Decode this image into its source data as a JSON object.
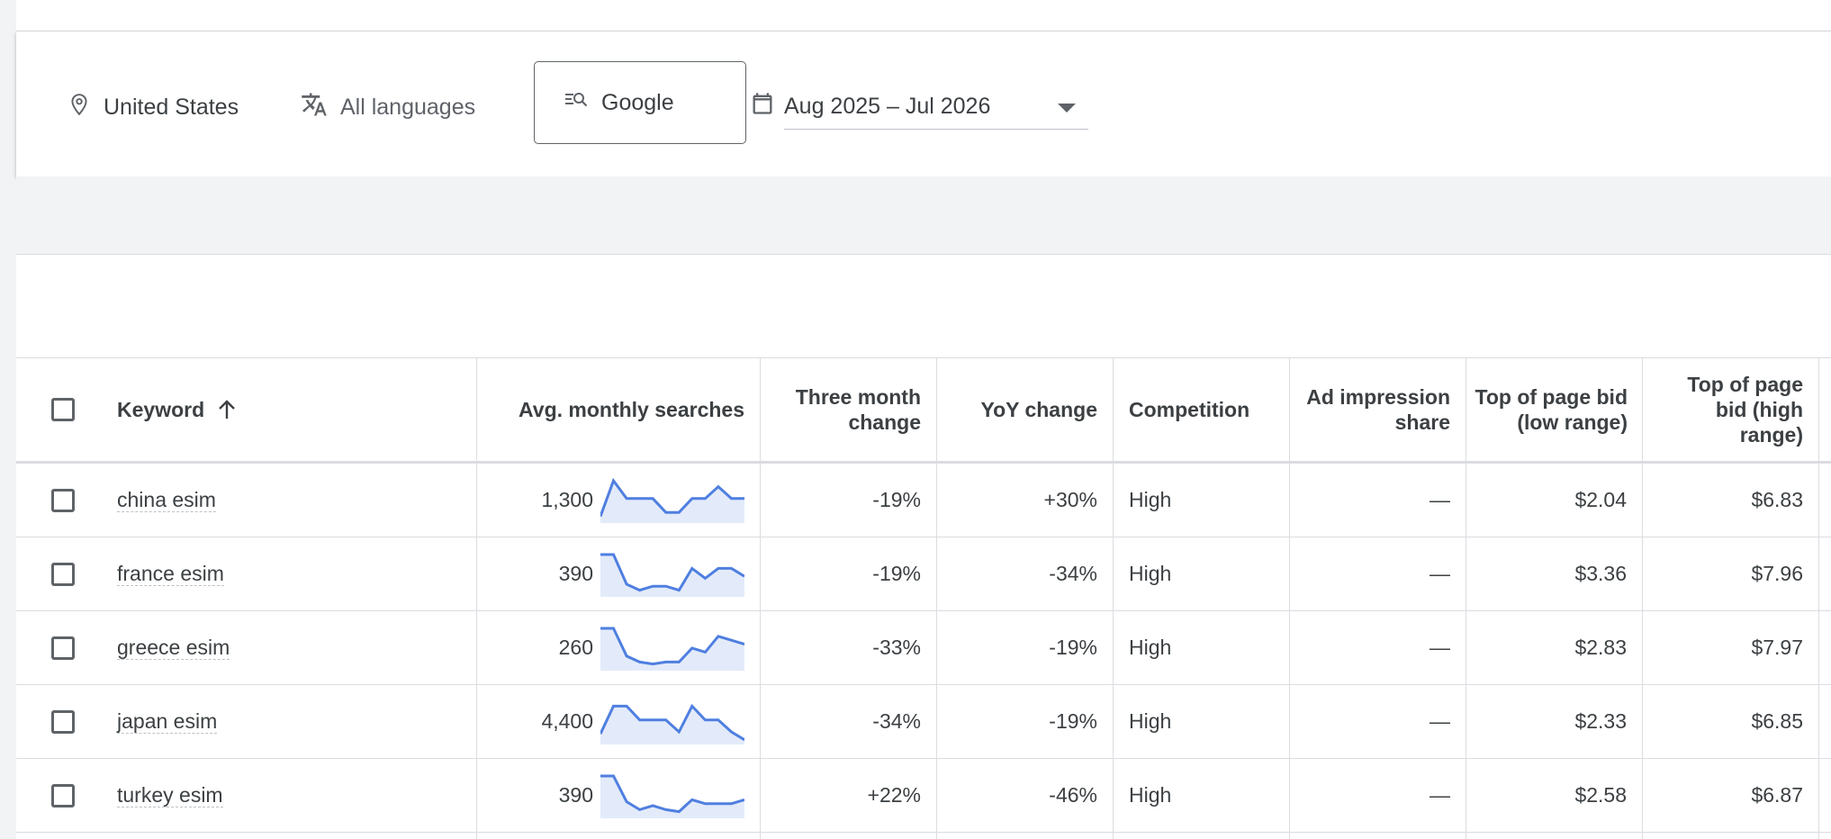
{
  "filters": {
    "location": "United States",
    "language": "All languages",
    "network": "Google",
    "date_range": "Aug 2025 – Jul 2026"
  },
  "table": {
    "headers": {
      "keyword": "Keyword",
      "avg_monthly_searches": "Avg. monthly searches",
      "three_month_change": "Three month change",
      "yoy_change": "YoY change",
      "competition": "Competition",
      "ad_impression_share": "Ad impression share",
      "bid_low": "Top of page bid (low range)",
      "bid_high": "Top of page bid (high range)"
    },
    "rows": [
      {
        "keyword": "china esim",
        "searches": "1,300",
        "three_month": "-19%",
        "yoy": "+30%",
        "competition": "High",
        "impression_share": "—",
        "bid_low": "$2.04",
        "bid_high": "$6.83",
        "trend": [
          0.1,
          1.0,
          0.55,
          0.55,
          0.55,
          0.2,
          0.2,
          0.55,
          0.55,
          0.85,
          0.55,
          0.55
        ]
      },
      {
        "keyword": "france esim",
        "searches": "390",
        "three_month": "-19%",
        "yoy": "-34%",
        "competition": "High",
        "impression_share": "—",
        "bid_low": "$3.36",
        "bid_high": "$7.96",
        "trend": [
          1.0,
          1.0,
          0.25,
          0.1,
          0.2,
          0.2,
          0.1,
          0.65,
          0.4,
          0.65,
          0.65,
          0.45
        ]
      },
      {
        "keyword": "greece esim",
        "searches": "260",
        "three_month": "-33%",
        "yoy": "-19%",
        "competition": "High",
        "impression_share": "—",
        "bid_low": "$2.83",
        "bid_high": "$7.97",
        "trend": [
          1.0,
          1.0,
          0.3,
          0.15,
          0.1,
          0.15,
          0.15,
          0.5,
          0.4,
          0.8,
          0.7,
          0.6
        ]
      },
      {
        "keyword": "japan esim",
        "searches": "4,400",
        "three_month": "-34%",
        "yoy": "-19%",
        "competition": "High",
        "impression_share": "—",
        "bid_low": "$2.33",
        "bid_high": "$6.85",
        "trend": [
          0.2,
          0.9,
          0.9,
          0.55,
          0.55,
          0.55,
          0.25,
          0.9,
          0.55,
          0.55,
          0.25,
          0.05
        ]
      },
      {
        "keyword": "turkey esim",
        "searches": "390",
        "three_month": "+22%",
        "yoy": "-46%",
        "competition": "High",
        "impression_share": "—",
        "bid_low": "$2.58",
        "bid_high": "$6.87",
        "trend": [
          1.0,
          1.0,
          0.35,
          0.15,
          0.25,
          0.15,
          0.1,
          0.4,
          0.3,
          0.3,
          0.3,
          0.4
        ]
      }
    ]
  },
  "colors": {
    "sparkline_line": "#4f7fe0",
    "sparkline_fill": "#e3ebfa"
  }
}
